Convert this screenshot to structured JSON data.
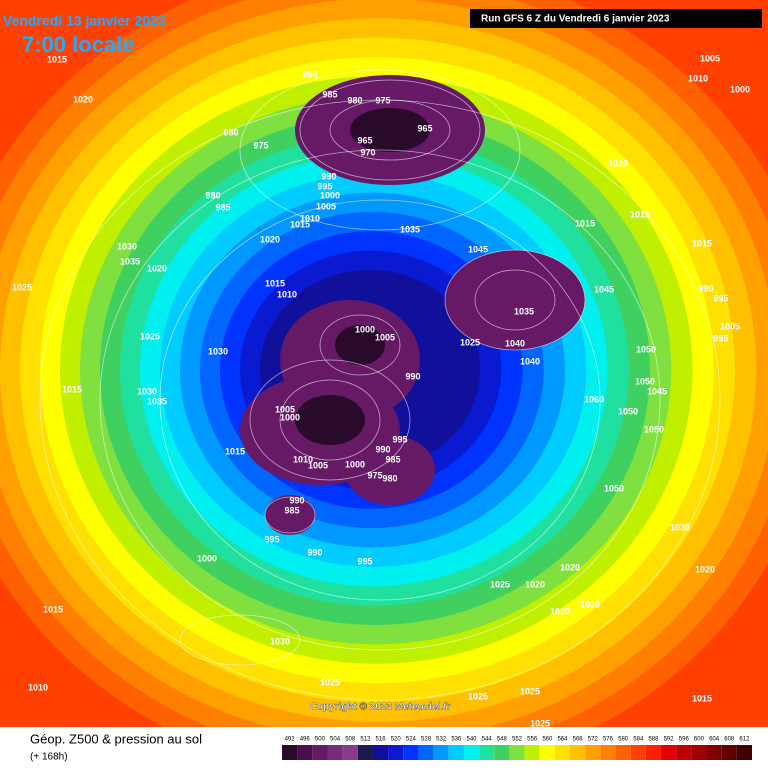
{
  "header": {
    "date": "Vendredi 13 janvier 2023",
    "time": "7:00 locale",
    "run": "Run GFS 6 Z du Vendredi 6 janvier 2023"
  },
  "map": {
    "pressure_labels": [
      "1015",
      "1020",
      "990",
      "985",
      "980",
      "975",
      "965",
      "965",
      "970",
      "980",
      "975",
      "990",
      "995",
      "1000",
      "1005",
      "980",
      "985",
      "1010",
      "1015",
      "1020",
      "1030",
      "1035",
      "1020",
      "1025",
      "1035",
      "1045",
      "1035",
      "1045",
      "1040",
      "1040",
      "1025",
      "1015",
      "1010",
      "1000",
      "1005",
      "990",
      "1025",
      "1030",
      "1015",
      "1030",
      "1035",
      "1005",
      "1000",
      "995",
      "990",
      "985",
      "980",
      "975",
      "1000",
      "1005",
      "1010",
      "1015",
      "990",
      "985",
      "995",
      "990",
      "995",
      "1000",
      "1050",
      "1050",
      "1050",
      "1050",
      "1050",
      "1060",
      "1030",
      "1020",
      "1015",
      "1030",
      "1025",
      "1010",
      "1025",
      "1020",
      "1020",
      "1020",
      "1020",
      "1025",
      "1025",
      "1025",
      "1015",
      "1005",
      "1000",
      "1010",
      "1020",
      "1015",
      "1015",
      "1015",
      "990",
      "995",
      "1005",
      "995",
      "1045"
    ],
    "copyright": "Copyright © 2023 Meteociel.fr"
  },
  "footer": {
    "title": "Géop. Z500 & pression au sol",
    "lead": "(+ 168h)",
    "scale": {
      "values": [
        492,
        496,
        500,
        504,
        508,
        512,
        516,
        520,
        524,
        528,
        532,
        536,
        540,
        544,
        548,
        552,
        556,
        560,
        564,
        568,
        572,
        576,
        580,
        584,
        588,
        592,
        596,
        600,
        604,
        608,
        612
      ],
      "colors": [
        "#2a0a2a",
        "#4b0d4b",
        "#661a66",
        "#7a2a7a",
        "#8a3a8a",
        "#1a1a50",
        "#10109a",
        "#0a1ad0",
        "#0033ff",
        "#0066ff",
        "#0099ff",
        "#00ccff",
        "#00f0f0",
        "#20e0a0",
        "#40d060",
        "#80e040",
        "#c0f000",
        "#ffff00",
        "#ffe000",
        "#ffc000",
        "#ffa000",
        "#ff8000",
        "#ff6000",
        "#ff4000",
        "#ff2000",
        "#e00000",
        "#c00000",
        "#a00000",
        "#800000",
        "#600000",
        "#400000"
      ]
    }
  }
}
